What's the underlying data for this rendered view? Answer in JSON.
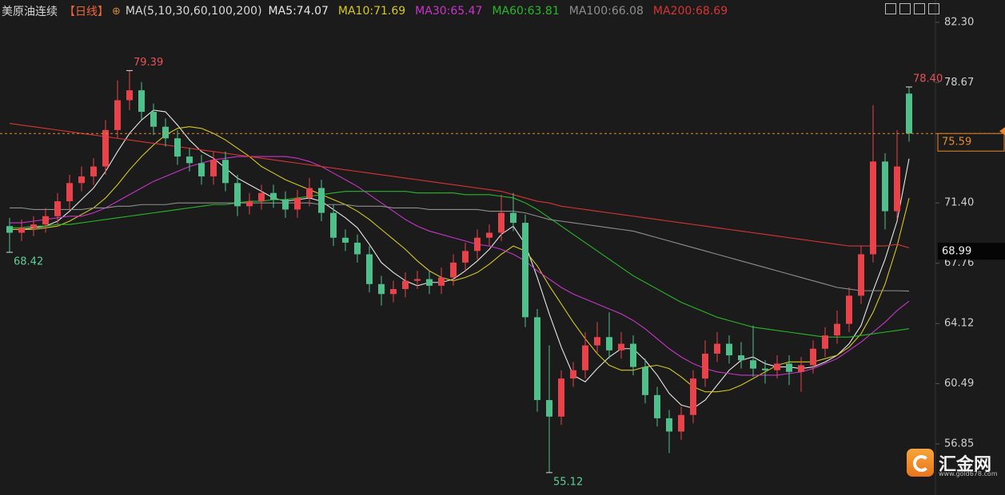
{
  "chart_data": {
    "type": "candlestick",
    "title": "美原油连续",
    "period": "【日线】",
    "ma_params": "MA(5,10,30,60,100,200)",
    "up_color": "#e8424a",
    "down_color": "#4fc08c",
    "ylim": [
      54.25,
      83.65
    ],
    "yticks": [
      {
        "value": 82.3,
        "label": "82.30"
      },
      78.67,
      {
        "value": 71.4,
        "label": "71.40"
      },
      67.76,
      64.12,
      60.49,
      56.85
    ],
    "ref_price": 68.99,
    "open": [
      70.0,
      69.6,
      69.9,
      70.1,
      70.6,
      71.5,
      72.6,
      73.0,
      73.6,
      75.8,
      77.6,
      78.2,
      76.9,
      76.0,
      75.3,
      74.2,
      73.8,
      73.0,
      74.0,
      72.6,
      71.2,
      71.5,
      72.0,
      71.6,
      71.0,
      71.7,
      72.3,
      70.8,
      69.3,
      69.0,
      68.3,
      66.5,
      65.9,
      66.2,
      66.7,
      66.8,
      66.4,
      66.9,
      67.8,
      68.5,
      69.3,
      69.6,
      70.8,
      70.2,
      64.5,
      59.5,
      58.5,
      60.8,
      61.3,
      62.8,
      63.3,
      62.5,
      62.9,
      61.5,
      59.8,
      58.4,
      57.6,
      58.6,
      60.8,
      62.3,
      62.9,
      62.2,
      61.9,
      61.4,
      61.3,
      61.7,
      61.2,
      61.6,
      62.6,
      63.4,
      64.1,
      65.8,
      68.3,
      73.9,
      70.9,
      78.0
    ],
    "high": [
      70.5,
      70.4,
      70.6,
      71.1,
      72.0,
      73.1,
      73.6,
      74.1,
      76.4,
      78.8,
      79.39,
      78.7,
      77.4,
      76.5,
      75.8,
      74.7,
      74.3,
      74.5,
      74.5,
      73.1,
      72.0,
      72.5,
      72.5,
      72.1,
      72.2,
      72.9,
      72.8,
      71.3,
      69.8,
      69.5,
      68.8,
      67.0,
      66.7,
      67.2,
      67.3,
      67.3,
      67.5,
      68.3,
      69.0,
      69.8,
      70.1,
      71.9,
      72.0,
      70.7,
      65.0,
      62.8,
      61.3,
      61.8,
      63.6,
      64.2,
      64.8,
      63.6,
      63.4,
      62.0,
      60.3,
      58.9,
      59.1,
      61.3,
      63.1,
      63.6,
      63.4,
      63.0,
      64.0,
      61.9,
      62.2,
      62.2,
      62.1,
      63.1,
      63.9,
      64.9,
      66.3,
      68.8,
      77.3,
      74.4,
      75.8,
      78.4
    ],
    "low": [
      68.42,
      69.1,
      69.4,
      69.6,
      70.1,
      71.0,
      72.1,
      72.5,
      73.1,
      75.3,
      77.0,
      76.4,
      75.5,
      74.8,
      73.7,
      73.3,
      72.5,
      72.5,
      72.1,
      70.6,
      70.7,
      71.0,
      71.1,
      70.5,
      70.5,
      71.2,
      70.3,
      68.8,
      68.5,
      67.8,
      66.0,
      65.2,
      65.4,
      65.7,
      66.2,
      65.9,
      65.9,
      66.4,
      67.3,
      68.0,
      68.8,
      69.1,
      69.7,
      63.9,
      58.8,
      55.12,
      58.0,
      60.3,
      60.8,
      62.3,
      62.0,
      62.0,
      61.0,
      59.3,
      57.9,
      56.3,
      57.1,
      58.1,
      60.3,
      61.8,
      61.7,
      61.4,
      60.9,
      60.5,
      60.8,
      60.4,
      60.0,
      61.1,
      62.1,
      62.9,
      63.6,
      65.3,
      67.8,
      69.8,
      70.4,
      75.1
    ],
    "close": [
      69.6,
      69.9,
      70.1,
      70.6,
      71.5,
      72.6,
      73.0,
      73.6,
      75.8,
      77.6,
      78.2,
      76.9,
      76.0,
      75.3,
      74.2,
      73.8,
      73.0,
      74.0,
      72.6,
      71.2,
      71.5,
      72.0,
      71.6,
      71.0,
      71.7,
      72.3,
      70.8,
      69.3,
      69.0,
      68.3,
      66.5,
      65.9,
      66.2,
      66.7,
      66.8,
      66.4,
      66.9,
      67.8,
      68.5,
      69.3,
      69.6,
      70.8,
      70.2,
      64.5,
      59.5,
      58.5,
      60.8,
      61.3,
      62.8,
      63.3,
      62.5,
      62.9,
      61.5,
      59.8,
      58.4,
      57.6,
      58.6,
      60.8,
      62.3,
      62.9,
      62.2,
      61.9,
      61.4,
      61.3,
      61.7,
      61.2,
      61.6,
      62.6,
      63.4,
      64.1,
      65.8,
      68.3,
      73.9,
      70.9,
      73.6,
      75.59
    ],
    "high_labels": {
      "10": "79.39",
      "75": "78.40"
    },
    "low_labels": {
      "0": "68.42",
      "45": "55.12"
    },
    "series": [
      {
        "name": "MA5:74.07",
        "color": "#e6e6e6",
        "values": [
          69.8,
          69.8,
          69.9,
          70.0,
          70.3,
          70.9,
          71.6,
          72.3,
          73.3,
          74.5,
          75.6,
          76.4,
          77.0,
          76.9,
          76.1,
          75.2,
          74.5,
          74.1,
          73.5,
          72.9,
          72.5,
          72.1,
          71.7,
          71.5,
          71.6,
          71.7,
          71.5,
          71.0,
          70.5,
          69.9,
          68.9,
          67.8,
          67.2,
          66.7,
          66.4,
          66.6,
          66.6,
          66.8,
          67.3,
          67.9,
          68.6,
          69.5,
          70.0,
          68.9,
          66.9,
          64.7,
          62.7,
          61.0,
          60.6,
          61.4,
          62.1,
          62.6,
          62.6,
          61.9,
          61.0,
          59.9,
          59.2,
          59.0,
          59.5,
          60.4,
          61.3,
          61.9,
          62.1,
          61.7,
          61.5,
          61.5,
          61.4,
          61.5,
          61.8,
          62.2,
          62.9,
          64.0,
          66.1,
          68.0,
          70.3,
          74.07
        ]
      },
      {
        "name": "MA10:71.69",
        "color": "#d6c81c",
        "values": [
          69.8,
          69.8,
          69.8,
          69.9,
          70.0,
          70.3,
          70.7,
          71.1,
          71.7,
          72.5,
          73.4,
          74.2,
          74.9,
          75.5,
          75.9,
          76.0,
          75.9,
          75.6,
          75.2,
          74.7,
          74.2,
          73.6,
          73.2,
          72.8,
          72.5,
          72.2,
          71.9,
          71.6,
          71.3,
          70.9,
          70.4,
          69.8,
          69.2,
          68.6,
          67.9,
          67.3,
          66.9,
          66.7,
          66.9,
          67.2,
          67.7,
          68.3,
          68.8,
          68.5,
          67.6,
          66.4,
          65.3,
          64.2,
          63.2,
          62.3,
          61.6,
          61.3,
          61.3,
          61.5,
          61.6,
          61.4,
          60.9,
          60.3,
          60.0,
          60.0,
          60.1,
          60.4,
          60.8,
          61.2,
          61.6,
          61.8,
          61.8,
          61.8,
          62.0,
          62.2,
          62.7,
          63.5,
          64.8,
          66.5,
          68.8,
          71.69
        ]
      },
      {
        "name": "MA30:65.47",
        "color": "#c935c9",
        "values": [
          70.2,
          70.2,
          70.3,
          70.4,
          70.5,
          70.6,
          70.6,
          70.8,
          71.1,
          71.5,
          71.9,
          72.3,
          72.7,
          73.0,
          73.3,
          73.6,
          73.8,
          74.0,
          74.1,
          74.2,
          74.2,
          74.2,
          74.2,
          74.2,
          74.1,
          73.9,
          73.6,
          73.2,
          72.8,
          72.4,
          71.9,
          71.4,
          70.9,
          70.4,
          70.0,
          69.7,
          69.5,
          69.3,
          69.1,
          68.9,
          68.8,
          68.6,
          68.3,
          67.9,
          67.3,
          66.8,
          66.3,
          65.9,
          65.6,
          65.3,
          65.0,
          64.7,
          64.3,
          63.8,
          63.2,
          62.6,
          62.1,
          61.7,
          61.4,
          61.2,
          61.1,
          61.0,
          61.0,
          61.0,
          61.0,
          61.1,
          61.2,
          61.4,
          61.7,
          62.0,
          62.5,
          63.0,
          63.6,
          64.2,
          64.9,
          65.47
        ]
      },
      {
        "name": "MA60:63.81",
        "color": "#27b827",
        "values": [
          69.9,
          69.9,
          70.0,
          70.0,
          70.1,
          70.1,
          70.2,
          70.3,
          70.4,
          70.5,
          70.6,
          70.7,
          70.8,
          70.9,
          71.0,
          71.1,
          71.2,
          71.3,
          71.3,
          71.4,
          71.5,
          71.5,
          71.6,
          71.6,
          71.7,
          71.8,
          71.9,
          72.0,
          72.1,
          72.1,
          72.1,
          72.1,
          72.1,
          72.1,
          72.0,
          72.0,
          72.0,
          72.0,
          71.9,
          71.9,
          71.9,
          71.8,
          71.7,
          71.4,
          71.0,
          70.5,
          70.0,
          69.5,
          69.0,
          68.5,
          68.0,
          67.5,
          67.0,
          66.6,
          66.2,
          65.8,
          65.4,
          65.1,
          64.8,
          64.5,
          64.3,
          64.1,
          63.9,
          63.8,
          63.7,
          63.6,
          63.5,
          63.4,
          63.3,
          63.3,
          63.3,
          63.4,
          63.5,
          63.6,
          63.7,
          63.81
        ]
      },
      {
        "name": "MA100:66.08",
        "color": "#8e8e8e",
        "values": [
          71.1,
          71.1,
          71.0,
          71.0,
          71.0,
          71.0,
          71.0,
          71.1,
          71.1,
          71.2,
          71.2,
          71.3,
          71.3,
          71.3,
          71.4,
          71.4,
          71.4,
          71.4,
          71.4,
          71.4,
          71.4,
          71.4,
          71.4,
          71.4,
          71.4,
          71.4,
          71.3,
          71.3,
          71.3,
          71.2,
          71.2,
          71.2,
          71.1,
          71.1,
          71.1,
          71.0,
          71.0,
          71.0,
          71.0,
          71.0,
          70.9,
          70.9,
          70.9,
          70.8,
          70.6,
          70.4,
          70.3,
          70.2,
          70.1,
          70.0,
          69.9,
          69.8,
          69.7,
          69.5,
          69.3,
          69.1,
          68.9,
          68.7,
          68.5,
          68.3,
          68.1,
          67.9,
          67.7,
          67.5,
          67.3,
          67.1,
          66.9,
          66.7,
          66.5,
          66.3,
          66.2,
          66.1,
          66.1,
          66.1,
          66.1,
          66.08
        ]
      },
      {
        "name": "MA200:68.69",
        "color": "#d83434",
        "values": [
          76.2,
          76.1,
          76.0,
          75.9,
          75.8,
          75.7,
          75.6,
          75.5,
          75.4,
          75.3,
          75.2,
          75.1,
          75.0,
          74.9,
          74.8,
          74.7,
          74.6,
          74.5,
          74.4,
          74.3,
          74.2,
          74.1,
          74.0,
          73.9,
          73.8,
          73.7,
          73.6,
          73.5,
          73.4,
          73.3,
          73.2,
          73.1,
          73.0,
          72.9,
          72.8,
          72.7,
          72.6,
          72.5,
          72.4,
          72.3,
          72.2,
          72.1,
          71.9,
          71.7,
          71.5,
          71.4,
          71.2,
          71.1,
          71.0,
          70.9,
          70.8,
          70.7,
          70.6,
          70.5,
          70.4,
          70.3,
          70.2,
          70.1,
          70.0,
          69.9,
          69.8,
          69.7,
          69.6,
          69.5,
          69.4,
          69.3,
          69.2,
          69.1,
          69.0,
          68.9,
          68.8,
          68.8,
          68.8,
          68.8,
          68.9,
          68.69
        ]
      }
    ],
    "logo": {
      "name": "汇金网",
      "url": "www.gold678.com"
    }
  }
}
